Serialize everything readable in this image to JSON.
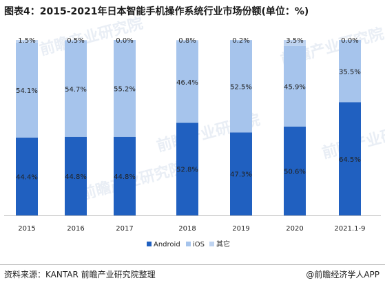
{
  "title": "图表4：2015-2021年日本智能手机操作系统行业市场份额(单位：%)",
  "source": "资料来源：KANTAR 前瞻产业研究院整理",
  "brand": "@前瞻经济学人APP",
  "watermark": "前瞻产业研究院",
  "colors": {
    "android": "#2060c0",
    "ios": "#a6c4ec",
    "other": "#bed3f0",
    "text": "#222222",
    "axis": "#bfbfbf"
  },
  "chart_data": {
    "type": "bar",
    "stacked": true,
    "categories": [
      "2015",
      "2016",
      "2017",
      "2018",
      "2019",
      "2020",
      "2021.1-9"
    ],
    "series": [
      {
        "name": "Android",
        "values": [
          44.4,
          44.8,
          44.8,
          52.8,
          47.3,
          50.6,
          64.5
        ]
      },
      {
        "name": "iOS",
        "values": [
          54.1,
          54.7,
          55.2,
          46.4,
          52.5,
          45.9,
          35.5
        ]
      },
      {
        "name": "其它",
        "values": [
          1.5,
          0.5,
          0.0,
          0.8,
          0.2,
          3.5,
          0.0
        ]
      }
    ],
    "data_labels": {
      "Android": [
        "44.4%",
        "44.8%",
        "44.8%",
        "52.8%",
        "47.3%",
        "50.6%",
        "64.5%"
      ],
      "iOS": [
        "54.1%",
        "54.7%",
        "55.2%",
        "46.4%",
        "52.5%",
        "45.9%",
        "35.5%"
      ],
      "其它": [
        "1.5%",
        "0.5%",
        "0.0%",
        "0.8%",
        "0.2%",
        "3.5%",
        "0.0%"
      ]
    },
    "ylim": [
      0,
      100
    ],
    "legend_position": "bottom-center",
    "grid": false
  }
}
